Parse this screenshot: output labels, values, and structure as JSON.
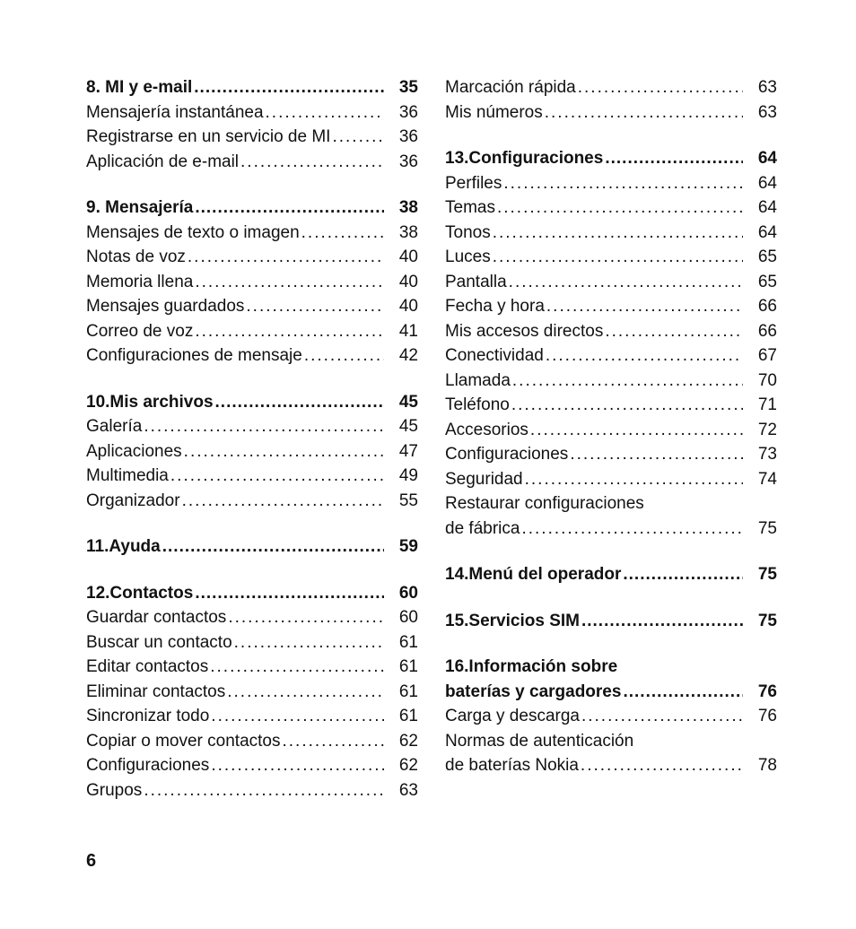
{
  "pageNumber": "6",
  "leaderDots": "...........................................................",
  "columns": {
    "left": [
      {
        "heading": {
          "label": "8. MI y e-mail",
          "page": "35"
        },
        "items": [
          {
            "label": "Mensajería instantánea",
            "page": "36"
          },
          {
            "label": "Registrarse en un servicio de MI",
            "page": "36"
          },
          {
            "label": "Aplicación de e-mail",
            "page": "36"
          }
        ]
      },
      {
        "heading": {
          "label": "9. Mensajería",
          "page": "38"
        },
        "items": [
          {
            "label": "Mensajes de texto o imagen",
            "page": "38"
          },
          {
            "label": "Notas de voz",
            "page": "40"
          },
          {
            "label": "Memoria llena",
            "page": "40"
          },
          {
            "label": "Mensajes guardados",
            "page": "40"
          },
          {
            "label": "Correo de voz",
            "page": "41"
          },
          {
            "label": "Configuraciones de mensaje",
            "page": "42"
          }
        ]
      },
      {
        "heading": {
          "label": "10.Mis archivos",
          "page": "45"
        },
        "items": [
          {
            "label": "Galería",
            "page": "45"
          },
          {
            "label": "Aplicaciones",
            "page": "47"
          },
          {
            "label": "Multimedia",
            "page": "49"
          },
          {
            "label": "Organizador",
            "page": "55"
          }
        ]
      },
      {
        "heading": {
          "label": "11.Ayuda",
          "page": "59"
        },
        "items": []
      },
      {
        "heading": {
          "label": "12.Contactos",
          "page": "60"
        },
        "items": [
          {
            "label": "Guardar contactos",
            "page": "60"
          },
          {
            "label": "Buscar un contacto",
            "page": "61"
          },
          {
            "label": "Editar contactos",
            "page": "61"
          },
          {
            "label": "Eliminar contactos",
            "page": "61"
          },
          {
            "label": "Sincronizar todo",
            "page": "61"
          },
          {
            "label": "Copiar o mover contactos",
            "page": "62"
          },
          {
            "label": "Configuraciones",
            "page": "62"
          },
          {
            "label": "Grupos",
            "page": "63"
          }
        ]
      }
    ],
    "right": [
      {
        "heading": null,
        "items": [
          {
            "label": "Marcación rápida",
            "page": "63"
          },
          {
            "label": "Mis números",
            "page": "63"
          }
        ]
      },
      {
        "heading": {
          "label": "13.Configuraciones",
          "page": "64"
        },
        "items": [
          {
            "label": "Perfiles",
            "page": "64"
          },
          {
            "label": "Temas",
            "page": "64"
          },
          {
            "label": "Tonos",
            "page": "64"
          },
          {
            "label": "Luces",
            "page": "65"
          },
          {
            "label": "Pantalla",
            "page": "65"
          },
          {
            "label": "Fecha y hora",
            "page": "66"
          },
          {
            "label": "Mis accesos directos",
            "page": "66"
          },
          {
            "label": "Conectividad",
            "page": "67"
          },
          {
            "label": "Llamada",
            "page": "70"
          },
          {
            "label": "Teléfono",
            "page": "71"
          },
          {
            "label": "Accesorios",
            "page": "72"
          },
          {
            "label": "Configuraciones",
            "page": "73"
          },
          {
            "label": "Seguridad",
            "page": "74"
          },
          {
            "wrap": {
              "line1": "Restaurar configuraciones",
              "line2": "de fábrica"
            },
            "page": "75"
          }
        ]
      },
      {
        "heading": {
          "label": "14.Menú del operador",
          "page": "75"
        },
        "items": []
      },
      {
        "heading": {
          "label": "15.Servicios SIM",
          "page": "75"
        },
        "items": []
      },
      {
        "headingWrap": {
          "line1": "16.Información sobre",
          "line2": "baterías y cargadores",
          "page": "76"
        },
        "items": [
          {
            "label": "Carga y descarga",
            "page": "76"
          },
          {
            "wrap": {
              "line1": "Normas de autenticación",
              "line2": "de baterías Nokia"
            },
            "page": "78"
          }
        ]
      }
    ]
  }
}
